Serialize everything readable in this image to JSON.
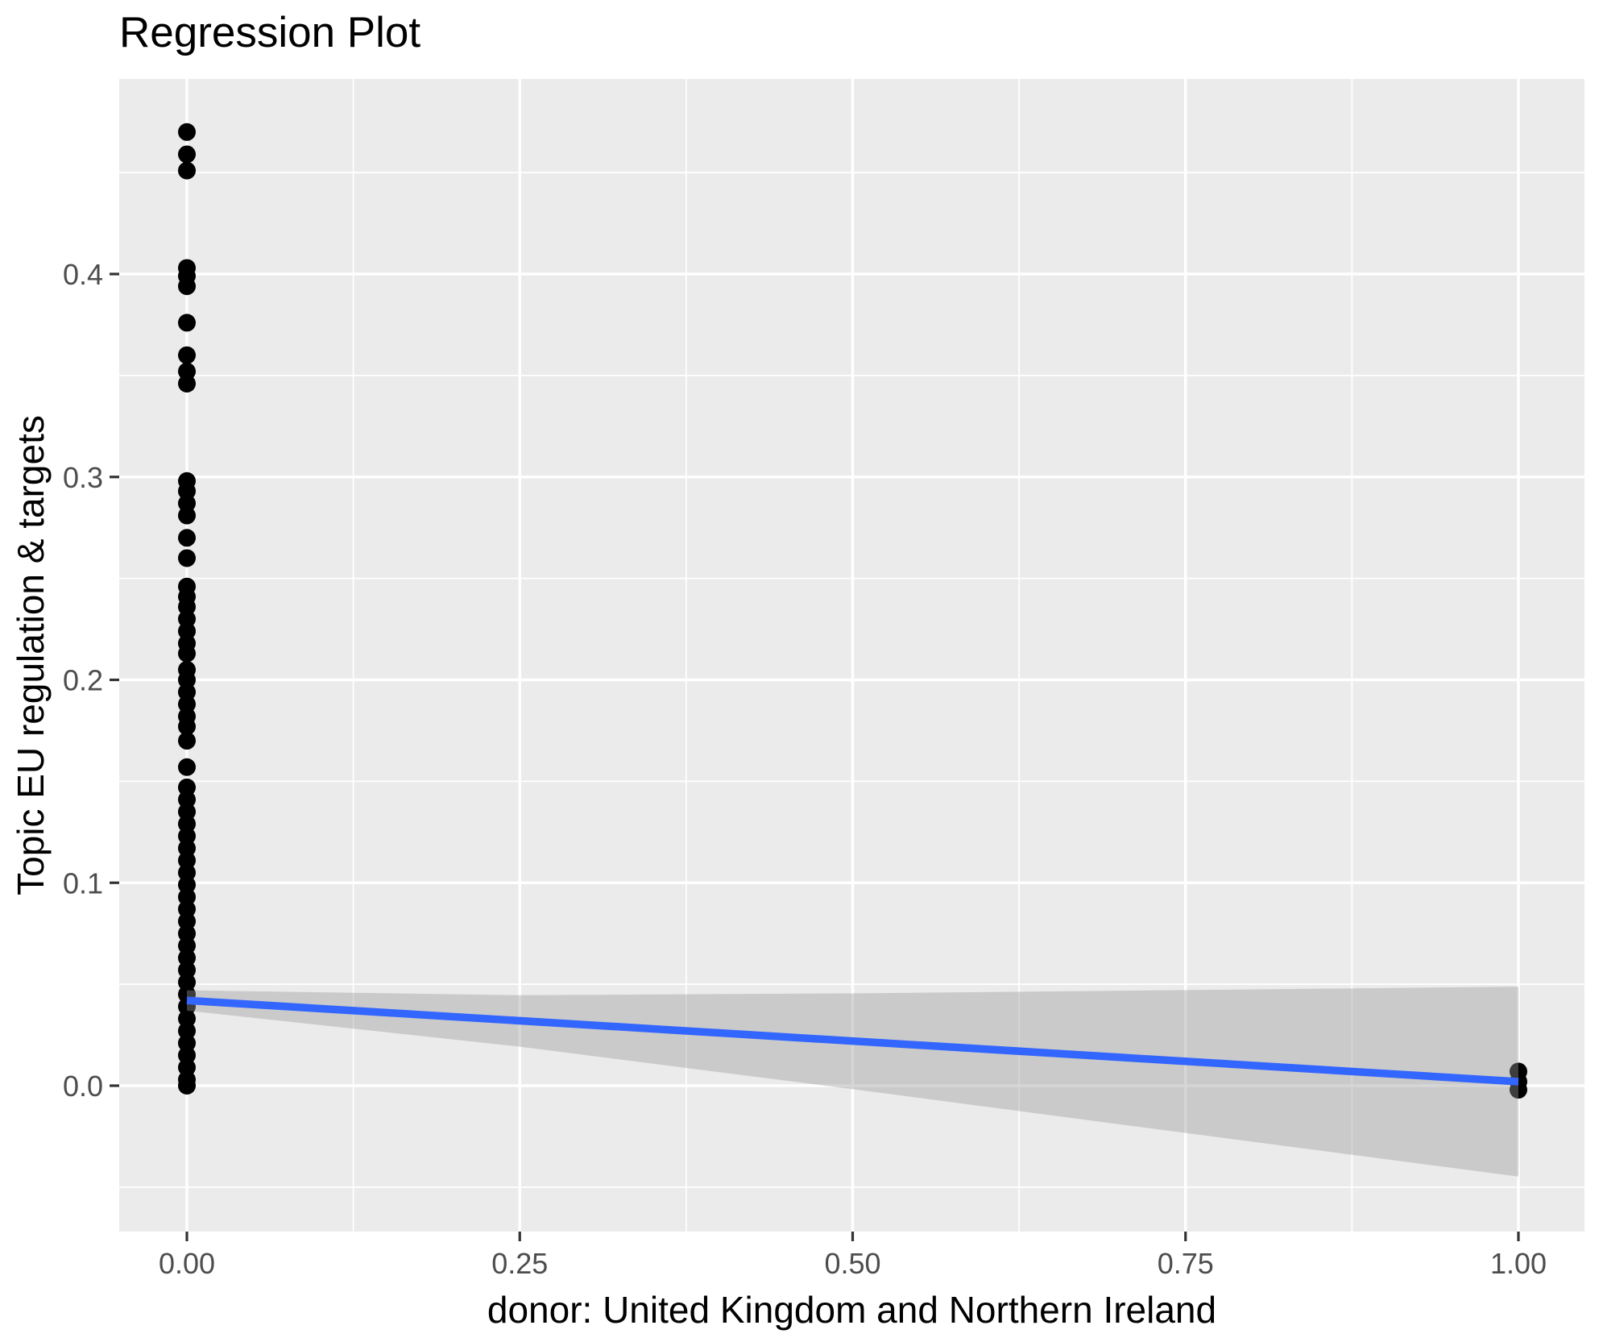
{
  "title": "Regression Plot",
  "chart_data": {
    "type": "scatter",
    "title": "Regression Plot",
    "xlabel": "donor: United Kingdom and Northern Ireland",
    "ylabel": "Topic EU regulation & targets",
    "legend": false,
    "grid": true,
    "xlim": [
      -0.051,
      1.05
    ],
    "ylim": [
      -0.072,
      0.496
    ],
    "x_ticks": {
      "values": [
        0,
        0.25,
        0.5,
        0.75,
        1.0
      ],
      "labels": [
        "0.00",
        "0.25",
        "0.50",
        "0.75",
        "1.00"
      ]
    },
    "y_ticks": {
      "values": [
        0,
        0.1,
        0.2,
        0.3,
        0.4
      ],
      "labels": [
        "0.0",
        "0.1",
        "0.2",
        "0.3",
        "0.4"
      ]
    },
    "x_minor": [
      0.125,
      0.375,
      0.625,
      0.875
    ],
    "y_minor": [
      -0.05,
      0.05,
      0.15,
      0.25,
      0.35,
      0.45
    ],
    "series": [
      {
        "name": "observations-x0",
        "type": "points",
        "x": 0,
        "y": [
          0.47,
          0.459,
          0.451,
          0.403,
          0.399,
          0.394,
          0.376,
          0.36,
          0.352,
          0.346,
          0.298,
          0.293,
          0.287,
          0.281,
          0.27,
          0.26,
          0.246,
          0.241,
          0.236,
          0.23,
          0.224,
          0.218,
          0.213,
          0.205,
          0.2,
          0.194,
          0.188,
          0.182,
          0.177,
          0.17,
          0.157,
          0.147,
          0.141,
          0.135,
          0.129,
          0.123,
          0.117,
          0.111,
          0.105,
          0.099,
          0.093,
          0.087,
          0.081,
          0.075,
          0.069,
          0.063,
          0.057,
          0.051,
          0.045,
          0.039,
          0.033,
          0.027,
          0.021,
          0.015,
          0.009,
          0.003,
          0.0
        ]
      },
      {
        "name": "observations-x1",
        "type": "points",
        "x": 1,
        "y": [
          0.007,
          0.002,
          -0.002
        ]
      },
      {
        "name": "confidence-band",
        "type": "band",
        "x": [
          0,
          0.25,
          0.5,
          0.75,
          1.0
        ],
        "upper": [
          0.047,
          0.0446,
          0.0455,
          0.0471,
          0.0488
        ],
        "lower": [
          0.037,
          0.0192,
          -0.0017,
          -0.0233,
          -0.0448
        ]
      },
      {
        "name": "regression-line",
        "type": "line",
        "x": [
          0,
          1
        ],
        "y": [
          0.042,
          0.002
        ]
      }
    ],
    "colors": {
      "panel_background": "#EBEBEB",
      "gridline": "#FFFFFF",
      "point": "#000000",
      "line": "#3366FF",
      "band": "#999999",
      "band_opacity": 0.4,
      "tick_mark": "#333333",
      "tick_label": "#4D4D4D",
      "title_text": "#000000"
    }
  }
}
